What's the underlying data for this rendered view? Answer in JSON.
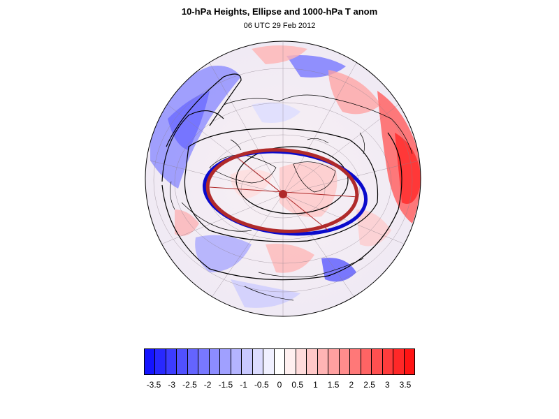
{
  "title": "10-hPa Heights, Ellipse and 1000-hPa T anom",
  "subtitle": "06 UTC 29 Feb 2012",
  "colorbar": {
    "colors": [
      "#1414ff",
      "#2828ff",
      "#3c3cff",
      "#5050ff",
      "#6464ff",
      "#7878ff",
      "#8c8cff",
      "#a0a0ff",
      "#b4b4ff",
      "#c8c8ff",
      "#dcdcff",
      "#f0f0ff",
      "#ffffff",
      "#fff0f0",
      "#ffdcdc",
      "#ffc8c8",
      "#ffb4b4",
      "#ffa0a0",
      "#ff8c8c",
      "#ff7878",
      "#ff6464",
      "#ff5050",
      "#ff3c3c",
      "#ff2828",
      "#ff1414"
    ],
    "tick_labels": [
      "-3.5",
      "-3",
      "-2.5",
      "-2",
      "-1.5",
      "-1",
      "-0.5",
      "0",
      "0.5",
      "1",
      "1.5",
      "2",
      "2.5",
      "3",
      "3.5"
    ]
  },
  "map": {
    "projection": "orthographic, north-polar",
    "ellipse_colors": {
      "observed": "#0a0acc",
      "fitted": "#b02a2a",
      "pole_marker": "#b02a2a"
    },
    "contour_color": "#000000"
  }
}
